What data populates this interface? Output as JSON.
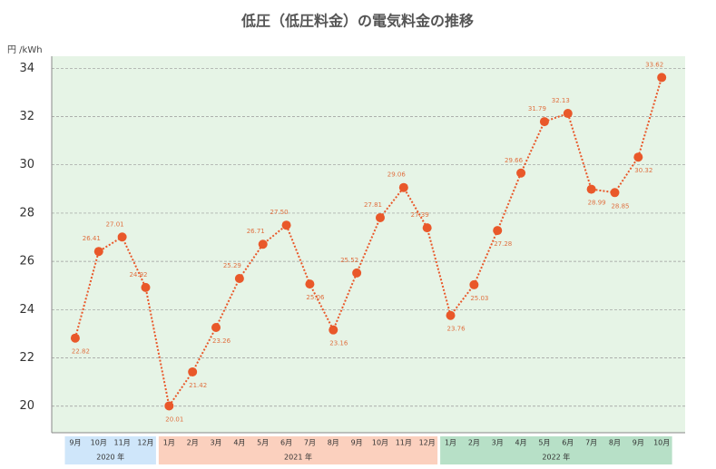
{
  "chart_data": {
    "type": "line",
    "title": "低圧（低圧料金）の電気料金の推移",
    "y_label": "円 /kWh",
    "groups": [
      {
        "label": "2020 年",
        "color": "#cfe6fa",
        "months": [
          "9月",
          "10月",
          "11月",
          "12月"
        ]
      },
      {
        "label": "2021 年",
        "color": "#fbd0be",
        "months": [
          "1月",
          "2月",
          "3月",
          "4月",
          "5月",
          "6月",
          "7月",
          "8月",
          "9月",
          "10月",
          "11月",
          "12月"
        ]
      },
      {
        "label": "2022 年",
        "color": "#b7e0c7",
        "months": [
          "1月",
          "2月",
          "3月",
          "4月",
          "5月",
          "6月",
          "7月",
          "8月",
          "9月",
          "10月"
        ]
      }
    ],
    "values": [
      22.82,
      26.41,
      27.01,
      24.92,
      20.01,
      21.42,
      23.26,
      25.29,
      26.71,
      27.5,
      25.06,
      23.16,
      25.52,
      27.81,
      29.06,
      27.39,
      23.76,
      25.03,
      27.28,
      29.66,
      31.79,
      32.13,
      28.99,
      28.85,
      30.32,
      33.62
    ],
    "value_labels": [
      "22.82",
      "26.41",
      "27.01",
      "24.92",
      "20.01",
      "21.42",
      "23.26",
      "25.29",
      "26.71",
      "27.50",
      "25.06",
      "23.16",
      "25.52",
      "27.81",
      "29.06",
      "27.39",
      "23.76",
      "25.03",
      "27.28",
      "29.66",
      "31.79",
      "32.13",
      "28.99",
      "28.85",
      "30.32",
      "33.62"
    ],
    "color": "#e9582a",
    "ylim": [
      18.9,
      34.5
    ],
    "yticks": [
      20,
      22,
      24,
      26,
      28,
      30,
      32,
      34
    ],
    "grid": true
  }
}
